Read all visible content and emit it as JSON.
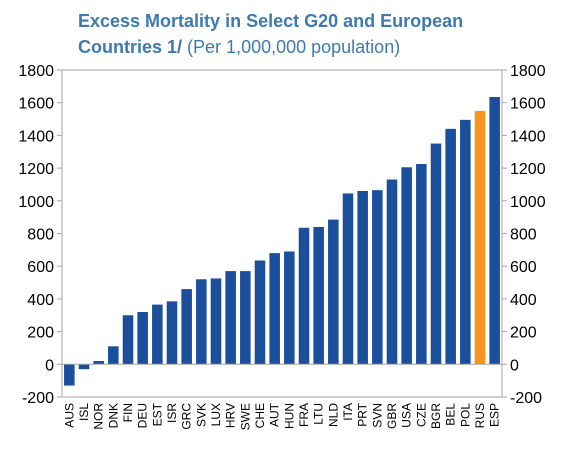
{
  "title_bold": "Excess Mortality in Select G20 and European",
  "title_bold_2": "Countries 1/",
  "title_rest": "(Per 1,000,000 population)",
  "colors": {
    "default": "#1b4f9c",
    "highlight": "#f7941d",
    "title": "#3d7ab0"
  },
  "chart_data": {
    "type": "bar",
    "title": "Excess Mortality in Select G20 and European Countries 1/ (Per 1,000,000 population)",
    "categories": [
      "AUS",
      "ISL",
      "NOR",
      "DNK",
      "FIN",
      "DEU",
      "EST",
      "ISR",
      "GRC",
      "SVK",
      "LUX",
      "HRV",
      "SWE",
      "CHE",
      "AUT",
      "HUN",
      "FRA",
      "LTU",
      "NLD",
      "ITA",
      "PRT",
      "SVN",
      "GBR",
      "USA",
      "CZE",
      "BGR",
      "BEL",
      "POL",
      "RUS",
      "ESP"
    ],
    "values": [
      -130,
      -30,
      20,
      110,
      300,
      320,
      365,
      385,
      460,
      520,
      525,
      570,
      570,
      635,
      680,
      690,
      835,
      840,
      885,
      1045,
      1060,
      1065,
      1130,
      1205,
      1225,
      1350,
      1440,
      1495,
      1550,
      1635
    ],
    "highlight": [
      "RUS"
    ],
    "ylim": [
      -200,
      1800
    ],
    "yticks": [
      -200,
      0,
      200,
      400,
      600,
      800,
      1000,
      1200,
      1400,
      1600,
      1800
    ],
    "secondary_y_axis": true,
    "grid": false,
    "legend": "none"
  }
}
